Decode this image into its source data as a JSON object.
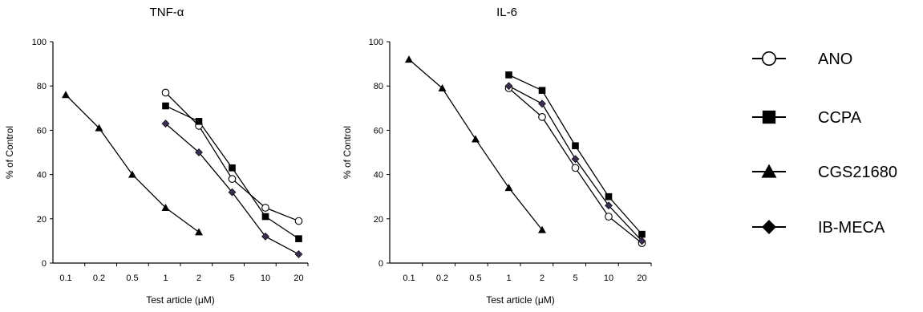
{
  "chart_data": [
    {
      "type": "line",
      "title": "TNF-α",
      "xlabel": "Test article (μM)",
      "ylabel": "% of Control",
      "categories": [
        "0.1",
        "0.2",
        "0.5",
        "1",
        "2",
        "5",
        "10",
        "20"
      ],
      "ylim": [
        0,
        100
      ],
      "yticks": [
        "0",
        "20",
        "40",
        "60",
        "80",
        "100"
      ],
      "grid": false,
      "series": [
        {
          "name": "ANO",
          "marker": "open-circle",
          "values": [
            null,
            null,
            null,
            77,
            62,
            38,
            25,
            19
          ]
        },
        {
          "name": "CCPA",
          "marker": "filled-square",
          "values": [
            null,
            null,
            null,
            71,
            64,
            43,
            21,
            11
          ]
        },
        {
          "name": "CGS21680",
          "marker": "filled-triangle",
          "values": [
            76,
            61,
            40,
            25,
            14,
            null,
            null,
            null
          ]
        },
        {
          "name": "IB-MECA",
          "marker": "filled-diamond",
          "values": [
            null,
            null,
            null,
            63,
            50,
            32,
            12,
            4
          ]
        }
      ]
    },
    {
      "type": "line",
      "title": "IL-6",
      "xlabel": "Test article (μM)",
      "ylabel": "% of Control",
      "categories": [
        "0.1",
        "0.2",
        "0.5",
        "1",
        "2",
        "5",
        "10",
        "20"
      ],
      "ylim": [
        0,
        100
      ],
      "yticks": [
        "0",
        "20",
        "40",
        "60",
        "80",
        "100"
      ],
      "grid": false,
      "series": [
        {
          "name": "ANO",
          "marker": "open-circle",
          "values": [
            null,
            null,
            null,
            79,
            66,
            43,
            21,
            9
          ]
        },
        {
          "name": "CCPA",
          "marker": "filled-square",
          "values": [
            null,
            null,
            null,
            85,
            78,
            53,
            30,
            13
          ]
        },
        {
          "name": "CGS21680",
          "marker": "filled-triangle",
          "values": [
            92,
            79,
            56,
            34,
            15,
            null,
            null,
            null
          ]
        },
        {
          "name": "IB-MECA",
          "marker": "filled-diamond",
          "values": [
            null,
            null,
            null,
            80,
            72,
            47,
            26,
            10
          ]
        }
      ]
    }
  ],
  "legend": {
    "placement": "right",
    "items": [
      {
        "label": "ANO",
        "marker": "open-circle"
      },
      {
        "label": "CCPA",
        "marker": "filled-square"
      },
      {
        "label": "CGS21680",
        "marker": "filled-triangle"
      },
      {
        "label": "IB-MECA",
        "marker": "filled-diamond"
      }
    ]
  }
}
